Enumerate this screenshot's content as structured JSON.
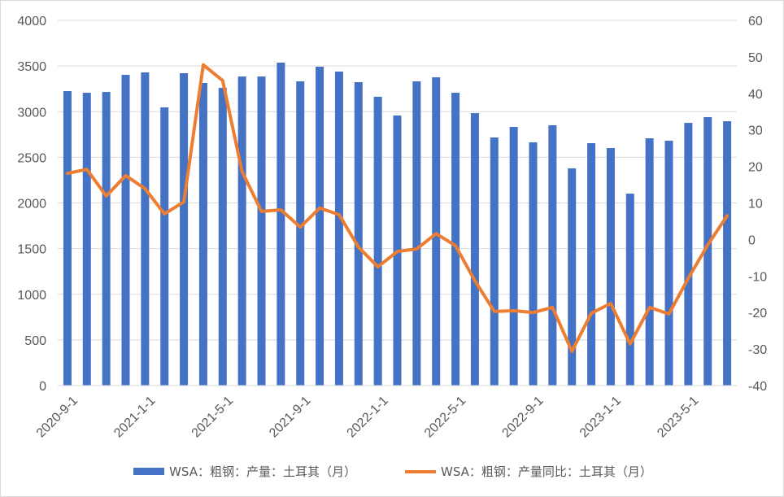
{
  "chart_data": {
    "type": "bar+line",
    "categories": [
      "2020-9-1",
      "2020-10-1",
      "2020-11-1",
      "2020-12-1",
      "2021-1-1",
      "2021-2-1",
      "2021-3-1",
      "2021-4-1",
      "2021-5-1",
      "2021-6-1",
      "2021-7-1",
      "2021-8-1",
      "2021-9-1",
      "2021-10-1",
      "2021-11-1",
      "2021-12-1",
      "2022-1-1",
      "2022-2-1",
      "2022-3-1",
      "2022-4-1",
      "2022-5-1",
      "2022-6-1",
      "2022-7-1",
      "2022-8-1",
      "2022-9-1",
      "2022-10-1",
      "2022-11-1",
      "2022-12-1",
      "2023-1-1",
      "2023-2-1",
      "2023-3-1",
      "2023-4-1",
      "2023-5-1",
      "2023-6-1",
      "2023-7-1"
    ],
    "x_tick_labels": [
      "2020-9-1",
      "2021-1-1",
      "2021-5-1",
      "2021-9-1",
      "2022-1-1",
      "2022-5-1",
      "2022-9-1",
      "2023-1-1",
      "2023-5-1"
    ],
    "series": [
      {
        "name": "WSA：粗钢：产量：土耳其（月）",
        "type": "bar",
        "axis": "left",
        "color": "#4472c4",
        "values": [
          3225,
          3207,
          3216,
          3403,
          3430,
          3047,
          3421,
          3314,
          3260,
          3385,
          3385,
          3537,
          3332,
          3492,
          3439,
          3323,
          3163,
          2958,
          3332,
          3376,
          3207,
          2984,
          2717,
          2833,
          2664,
          2851,
          2379,
          2655,
          2601,
          2102,
          2708,
          2682,
          2877,
          2940,
          2895
        ]
      },
      {
        "name": "WSA：粗钢：产量同比：土耳其（月）",
        "type": "line",
        "axis": "right",
        "color": "#ed7d31",
        "values": [
          18.1,
          19.2,
          11.9,
          17.5,
          13.9,
          7.0,
          10.3,
          47.8,
          43.5,
          18.6,
          7.7,
          8.1,
          3.4,
          8.6,
          6.8,
          -2.1,
          -7.5,
          -3.3,
          -2.6,
          1.6,
          -1.7,
          -11.3,
          -19.7,
          -19.5,
          -20.0,
          -18.6,
          -30.6,
          -20.2,
          -17.5,
          -28.6,
          -18.6,
          -20.4,
          -10.6,
          -1.5,
          6.5
        ]
      }
    ],
    "ylim_left": [
      0,
      4000
    ],
    "yticks_left": [
      "0",
      "500",
      "1000",
      "1500",
      "2000",
      "2500",
      "3000",
      "3500",
      "4000"
    ],
    "ylim_right": [
      -40,
      60
    ],
    "yticks_right": [
      "-40",
      "-30",
      "-20",
      "-10",
      "0",
      "10",
      "20",
      "30",
      "40",
      "50",
      "60"
    ],
    "grid": true,
    "legend_position": "bottom"
  }
}
